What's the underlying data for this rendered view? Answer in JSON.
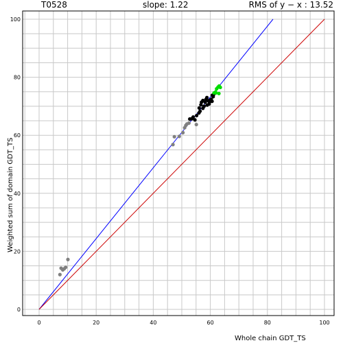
{
  "header": {
    "target_id": "T0528",
    "slope_text": "slope: 1.22",
    "rms_text": "RMS of  y − x : 13.52"
  },
  "chart_data": {
    "type": "scatter",
    "title": "",
    "xlabel": "Whole chain GDT_TS",
    "ylabel": "Weighted sum of domain GDT_TS",
    "xlim": [
      0,
      100
    ],
    "ylim": [
      0,
      100
    ],
    "x_ticks": [
      0,
      20,
      40,
      60,
      80,
      100
    ],
    "y_ticks": [
      0,
      20,
      40,
      60,
      80,
      100
    ],
    "minor_grid_step": 5,
    "grid": true,
    "reference_lines": [
      {
        "name": "",
        "slope": 1.22,
        "color": "#0000ff"
      },
      {
        "name": "",
        "slope": 1.0,
        "color": "#cc0000"
      }
    ],
    "series": [
      {
        "color": "#808080",
        "points": [
          [
            7.3,
            12.0
          ],
          [
            7.7,
            14.2
          ],
          [
            8.3,
            13.6
          ],
          [
            8.8,
            14.0
          ],
          [
            9.3,
            14.5
          ],
          [
            10.1,
            17.2
          ],
          [
            46.9,
            56.8
          ],
          [
            47.4,
            59.5
          ],
          [
            49.1,
            59.6
          ],
          [
            50.4,
            60.9
          ],
          [
            51.0,
            62.6
          ],
          [
            51.4,
            63.4
          ],
          [
            51.8,
            63.9
          ],
          [
            52.5,
            64.2
          ],
          [
            55.1,
            63.7
          ]
        ]
      },
      {
        "color": "#000000",
        "points": [
          [
            52.8,
            65.6
          ],
          [
            53.5,
            65.7
          ],
          [
            54.0,
            66.3
          ],
          [
            54.6,
            65.3
          ],
          [
            55.2,
            66.8
          ],
          [
            56.0,
            67.7
          ],
          [
            56.4,
            68.3
          ],
          [
            56.1,
            69.4
          ],
          [
            56.7,
            70.5
          ],
          [
            57.4,
            69.3
          ],
          [
            57.8,
            70.0
          ],
          [
            58.2,
            71.4
          ],
          [
            58.5,
            72.4
          ],
          [
            58.9,
            70.4
          ],
          [
            59.3,
            71.9
          ],
          [
            59.6,
            70.8
          ],
          [
            60.0,
            71.7
          ],
          [
            60.3,
            72.4
          ],
          [
            60.6,
            71.7
          ],
          [
            61.0,
            73.3
          ],
          [
            58.8,
            73.0
          ],
          [
            57.4,
            72.0
          ],
          [
            56.9,
            71.4
          ],
          [
            59.9,
            72.1
          ],
          [
            60.7,
            73.8
          ],
          [
            61.2,
            74.1
          ]
        ]
      },
      {
        "color": "#00dd00",
        "points": [
          [
            61.3,
            74.6
          ],
          [
            61.8,
            74.9
          ],
          [
            62.2,
            76.0
          ],
          [
            62.7,
            76.6
          ],
          [
            63.1,
            77.0
          ],
          [
            63.5,
            76.5
          ],
          [
            63.0,
            74.4
          ],
          [
            62.0,
            74.6
          ]
        ]
      }
    ]
  }
}
